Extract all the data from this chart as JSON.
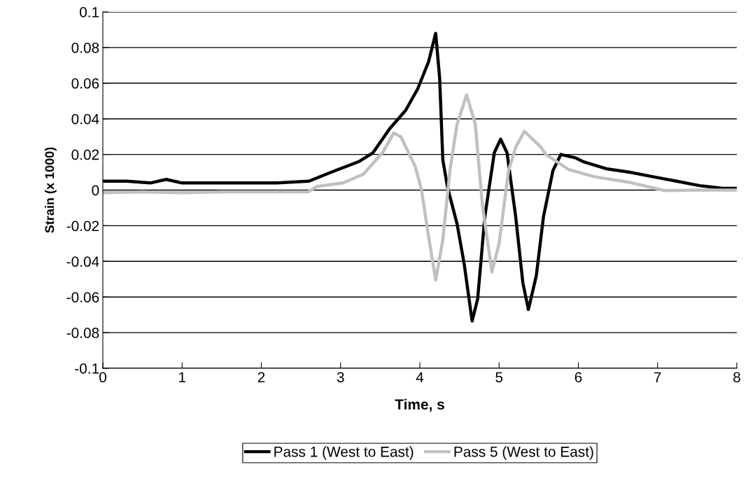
{
  "chart_data": {
    "type": "line",
    "xlabel": "Time, s",
    "ylabel": "Strain (x 1000)",
    "xlim": [
      0,
      8
    ],
    "xticks": [
      0,
      1,
      2,
      3,
      4,
      5,
      6,
      7,
      8
    ],
    "ylim": [
      -0.1,
      0.1
    ],
    "yticks": [
      -0.1,
      -0.08,
      -0.06,
      -0.04,
      -0.02,
      0,
      0.02,
      0.04,
      0.06,
      0.08,
      0.1
    ],
    "grid": "y",
    "legend": "bottom",
    "line_style": "solid",
    "marker": "none",
    "series": [
      {
        "name": "Pass 1 (West to East)",
        "color": "#000000",
        "x": [
          0,
          0.3,
          0.6,
          0.8,
          1.0,
          1.4,
          1.8,
          2.2,
          2.6,
          2.88,
          3.23,
          3.41,
          3.62,
          3.82,
          3.97,
          4.11,
          4.2,
          4.25,
          4.29,
          4.35,
          4.47,
          4.56,
          4.66,
          4.73,
          4.82,
          4.94,
          5.02,
          5.1,
          5.21,
          5.3,
          5.37,
          5.47,
          5.56,
          5.68,
          5.78,
          5.97,
          6.06,
          6.35,
          6.65,
          6.94,
          7.24,
          7.53,
          7.82,
          8
        ],
        "values": [
          0.005,
          0.005,
          0.004,
          0.006,
          0.004,
          0.004,
          0.004,
          0.004,
          0.005,
          0.01,
          0.016,
          0.021,
          0.0345,
          0.0447,
          0.0565,
          0.072,
          0.088,
          0.063,
          0.017,
          0.0015,
          -0.019,
          -0.0415,
          -0.0735,
          -0.061,
          -0.015,
          0.021,
          0.0286,
          0.021,
          -0.015,
          -0.052,
          -0.067,
          -0.048,
          -0.015,
          0.011,
          0.02,
          0.018,
          0.016,
          0.012,
          0.01,
          0.0075,
          0.005,
          0.0025,
          0.001,
          0.001
        ]
      },
      {
        "name": "Pass 5 (West to East)",
        "color": "#c0c0c0",
        "x": [
          0,
          0.5,
          1.0,
          1.5,
          2.0,
          2.59,
          2.7,
          3.03,
          3.29,
          3.53,
          3.67,
          3.76,
          3.94,
          4.02,
          4.11,
          4.2,
          4.29,
          4.38,
          4.47,
          4.59,
          4.7,
          4.79,
          4.91,
          5.0,
          5.12,
          5.21,
          5.32,
          5.53,
          5.59,
          5.88,
          6.2,
          6.65,
          7.09,
          7.5,
          8
        ],
        "values": [
          -0.0015,
          -0.001,
          -0.0015,
          -0.001,
          -0.001,
          -0.001,
          0.002,
          0.004,
          0.009,
          0.021,
          0.032,
          0.03,
          0.0135,
          0.0004,
          -0.026,
          -0.0505,
          -0.028,
          0.011,
          0.037,
          0.0535,
          0.037,
          -0.0087,
          -0.046,
          -0.03,
          0.011,
          0.024,
          0.033,
          0.024,
          0.02,
          0.0115,
          0.0075,
          0.0043,
          -0.0003,
          0.0,
          0.0
        ]
      }
    ]
  }
}
